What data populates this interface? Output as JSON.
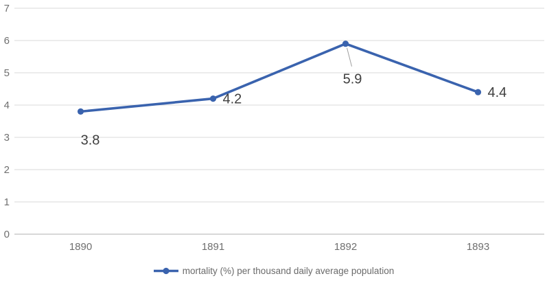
{
  "chart_data": {
    "type": "line",
    "title": "",
    "categories": [
      "1890",
      "1891",
      "1892",
      "1893"
    ],
    "series": [
      {
        "name": "mortality (%) per thousand daily average population",
        "values": [
          3.8,
          4.2,
          5.9,
          4.4
        ],
        "data_labels": [
          "3.8",
          "4.2",
          "5.9",
          "4.4"
        ],
        "marker": "circle"
      }
    ],
    "ylim": [
      0,
      7
    ],
    "yticks": [
      0,
      1,
      2,
      3,
      4,
      5,
      6,
      7
    ],
    "xlabel": "",
    "ylabel": "",
    "grid": "horizontal",
    "legend_position": "bottom-center",
    "label_positions": [
      "below",
      "right",
      "below-with-leader",
      "right"
    ],
    "colors": {
      "line": "#3a63ae",
      "gridline": "#d9d9d9",
      "axis_line": "#c0c0c0",
      "tick_label": "#6f6f6f",
      "data_label": "#3f3f3f",
      "legend_text": "#6a6a6a",
      "leader_line": "#9e9e9e",
      "background": "#ffffff"
    }
  }
}
